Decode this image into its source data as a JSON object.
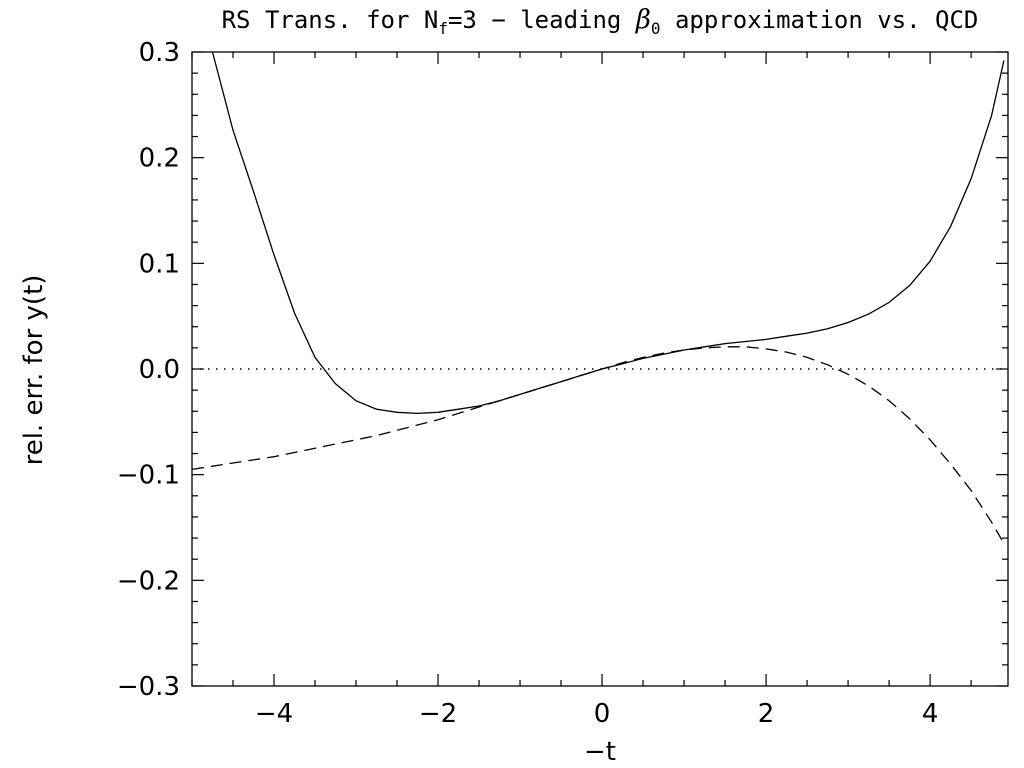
{
  "chart_data": {
    "type": "line",
    "title": {
      "prefix": "RS Trans. for N",
      "prefix_sub": "f",
      "middle": "=3 − leading ",
      "beta": "β",
      "beta_sub": "0",
      "suffix": " approximation vs. QCD"
    },
    "xlabel": "−t",
    "ylabel": "rel. err. for y(t)",
    "xlim": [
      -5,
      4.95
    ],
    "ylim": [
      -0.3,
      0.3
    ],
    "x_ticks": [
      {
        "value": -4,
        "label": "−4"
      },
      {
        "value": -2,
        "label": "−2"
      },
      {
        "value": 0,
        "label": "0"
      },
      {
        "value": 2,
        "label": "2"
      },
      {
        "value": 4,
        "label": "4"
      }
    ],
    "y_ticks": [
      {
        "value": 0.3,
        "label": "0.3"
      },
      {
        "value": 0.2,
        "label": "0.2"
      },
      {
        "value": 0.1,
        "label": "0.1"
      },
      {
        "value": 0.0,
        "label": "0.0"
      },
      {
        "value": -0.1,
        "label": "−0.1"
      },
      {
        "value": -0.2,
        "label": "−0.2"
      },
      {
        "value": -0.3,
        "label": "−0.3"
      }
    ],
    "grid": false,
    "reference_line": {
      "y": 0.0,
      "style": "dotted"
    },
    "series": [
      {
        "style": "solid",
        "color": "#000000",
        "x": [
          -4.75,
          -4.5,
          -4.25,
          -4.0,
          -3.75,
          -3.5,
          -3.25,
          -3.0,
          -2.75,
          -2.5,
          -2.25,
          -2.0,
          -1.75,
          -1.5,
          -1.25,
          -1.0,
          -0.75,
          -0.5,
          -0.25,
          0.0,
          0.25,
          0.5,
          0.75,
          1.0,
          1.25,
          1.5,
          1.75,
          2.0,
          2.25,
          2.5,
          2.75,
          3.0,
          3.25,
          3.5,
          3.75,
          4.0,
          4.25,
          4.5,
          4.75,
          4.9
        ],
        "y": [
          0.3,
          0.226,
          0.168,
          0.108,
          0.053,
          0.011,
          -0.014,
          -0.03,
          -0.038,
          -0.041,
          -0.042,
          -0.041,
          -0.038,
          -0.035,
          -0.03,
          -0.024,
          -0.018,
          -0.012,
          -0.006,
          0.0,
          0.005,
          0.01,
          0.014,
          0.018,
          0.021,
          0.024,
          0.026,
          0.028,
          0.031,
          0.034,
          0.038,
          0.044,
          0.052,
          0.063,
          0.079,
          0.102,
          0.135,
          0.18,
          0.24,
          0.292
        ]
      },
      {
        "style": "dashed",
        "color": "#000000",
        "x": [
          -5.0,
          -4.75,
          -4.5,
          -4.25,
          -4.0,
          -3.75,
          -3.5,
          -3.25,
          -3.0,
          -2.75,
          -2.5,
          -2.25,
          -2.0,
          -1.75,
          -1.5,
          -1.25,
          -1.0,
          -0.75,
          -0.5,
          -0.25,
          0.0,
          0.25,
          0.5,
          0.75,
          1.0,
          1.25,
          1.5,
          1.75,
          2.0,
          2.25,
          2.5,
          2.75,
          3.0,
          3.25,
          3.5,
          3.75,
          4.0,
          4.25,
          4.5,
          4.75,
          4.9
        ],
        "y": [
          -0.095,
          -0.092,
          -0.089,
          -0.086,
          -0.083,
          -0.079,
          -0.075,
          -0.071,
          -0.067,
          -0.063,
          -0.058,
          -0.053,
          -0.048,
          -0.042,
          -0.036,
          -0.03,
          -0.024,
          -0.018,
          -0.012,
          -0.006,
          0.0,
          0.006,
          0.011,
          0.015,
          0.018,
          0.02,
          0.021,
          0.021,
          0.019,
          0.016,
          0.011,
          0.004,
          -0.005,
          -0.016,
          -0.03,
          -0.047,
          -0.067,
          -0.09,
          -0.115,
          -0.145,
          -0.165
        ]
      }
    ]
  }
}
